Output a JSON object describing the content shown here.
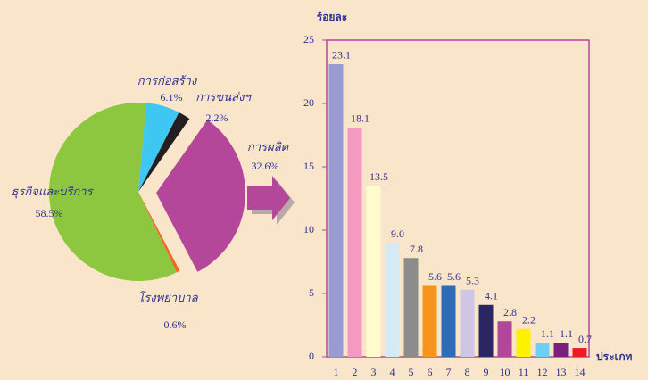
{
  "chart_data": [
    {
      "type": "pie",
      "categories": [
        "การผลิต",
        "โรงพยาบาล",
        "ธุรกิจและบริการ",
        "การก่อสร้าง",
        "การขนส่งฯ"
      ],
      "values": [
        32.6,
        0.6,
        58.5,
        6.1,
        2.2
      ],
      "value_labels": [
        "32.6%",
        "0.6%",
        "58.5%",
        "6.1%",
        "2.2%"
      ],
      "colors": [
        "#b5479b",
        "#f26522",
        "#8dc63f",
        "#3fc7f4",
        "#231f20"
      ]
    },
    {
      "type": "bar",
      "ylabel": "ร้อยละ",
      "xlabel": "ประเภท",
      "categories": [
        "1",
        "2",
        "3",
        "4",
        "5",
        "6",
        "7",
        "8",
        "9",
        "10",
        "11",
        "12",
        "13",
        "14"
      ],
      "values": [
        23.1,
        18.1,
        13.5,
        9.0,
        7.8,
        5.6,
        5.6,
        5.3,
        4.1,
        2.8,
        2.2,
        1.1,
        1.1,
        0.7
      ],
      "value_labels": [
        "23.1",
        "18.1",
        "13.5",
        "9.0",
        "7.8",
        "5.6",
        "5.6",
        "5.3",
        "4.1",
        "2.8",
        "2.2",
        "1.1",
        "1.1",
        "0.7"
      ],
      "colors": [
        "#9b9bd4",
        "#f49ac1",
        "#fffbcc",
        "#d6eaf5",
        "#8c8c8c",
        "#f7941d",
        "#2e6db5",
        "#cfc6e6",
        "#2b2563",
        "#b2479a",
        "#fff200",
        "#6ecff6",
        "#7b1f7e",
        "#ed1c24"
      ],
      "ylim": [
        0,
        25
      ],
      "yticks": [
        0,
        5,
        10,
        15,
        20,
        25
      ]
    }
  ]
}
